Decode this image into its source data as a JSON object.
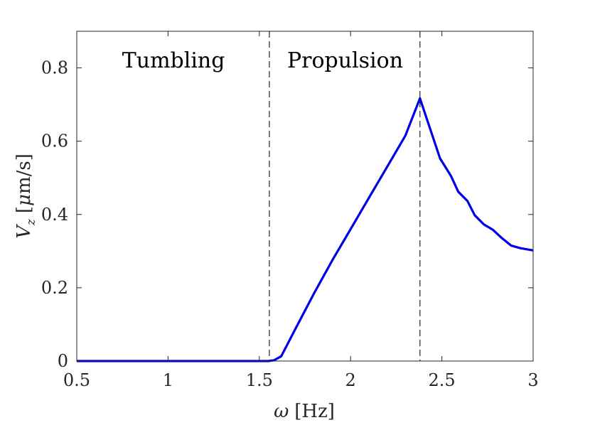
{
  "chart_data": {
    "type": "line",
    "xlim": [
      0.5,
      3
    ],
    "ylim": [
      0,
      0.9
    ],
    "x_ticks": [
      0.5,
      1,
      1.5,
      2,
      2.5,
      3
    ],
    "y_ticks": [
      0,
      0.2,
      0.4,
      0.6,
      0.8
    ],
    "x_tick_labels": [
      "0.5",
      "1",
      "1.5",
      "2",
      "2.5",
      "3"
    ],
    "y_tick_labels": [
      "0",
      "0.2",
      "0.4",
      "0.6",
      "0.8"
    ],
    "xlabel": {
      "symbol": "ω",
      "unit": "[Hz]"
    },
    "ylabel": {
      "symbol": "V",
      "subscript": "z",
      "unit_open": "[",
      "unit_mu": "μ",
      "unit_rest": "m/s]"
    },
    "grid": false,
    "box": true,
    "series": [
      {
        "color": "#0000e6",
        "x": [
          0.5,
          1.0,
          1.5,
          1.55,
          1.58,
          1.62,
          1.7,
          1.8,
          1.9,
          2.0,
          2.1,
          2.2,
          2.3,
          2.38,
          2.49,
          2.55,
          2.59,
          2.64,
          2.68,
          2.73,
          2.78,
          2.83,
          2.88,
          2.93,
          3.0
        ],
        "y": [
          0,
          0,
          0,
          0,
          0.002,
          0.013,
          0.09,
          0.185,
          0.275,
          0.36,
          0.445,
          0.53,
          0.615,
          0.717,
          0.553,
          0.505,
          0.462,
          0.437,
          0.398,
          0.373,
          0.358,
          0.335,
          0.315,
          0.308,
          0.302
        ]
      }
    ],
    "vlines": [
      {
        "x": 1.555,
        "style": "dashed",
        "color": "#333333"
      },
      {
        "x": 2.38,
        "style": "dashed",
        "color": "#333333"
      }
    ],
    "annotations": [
      {
        "text": "Tumbling",
        "x": 1.03,
        "y": 0.82
      },
      {
        "text": "Propulsion",
        "x": 1.97,
        "y": 0.82
      }
    ]
  }
}
